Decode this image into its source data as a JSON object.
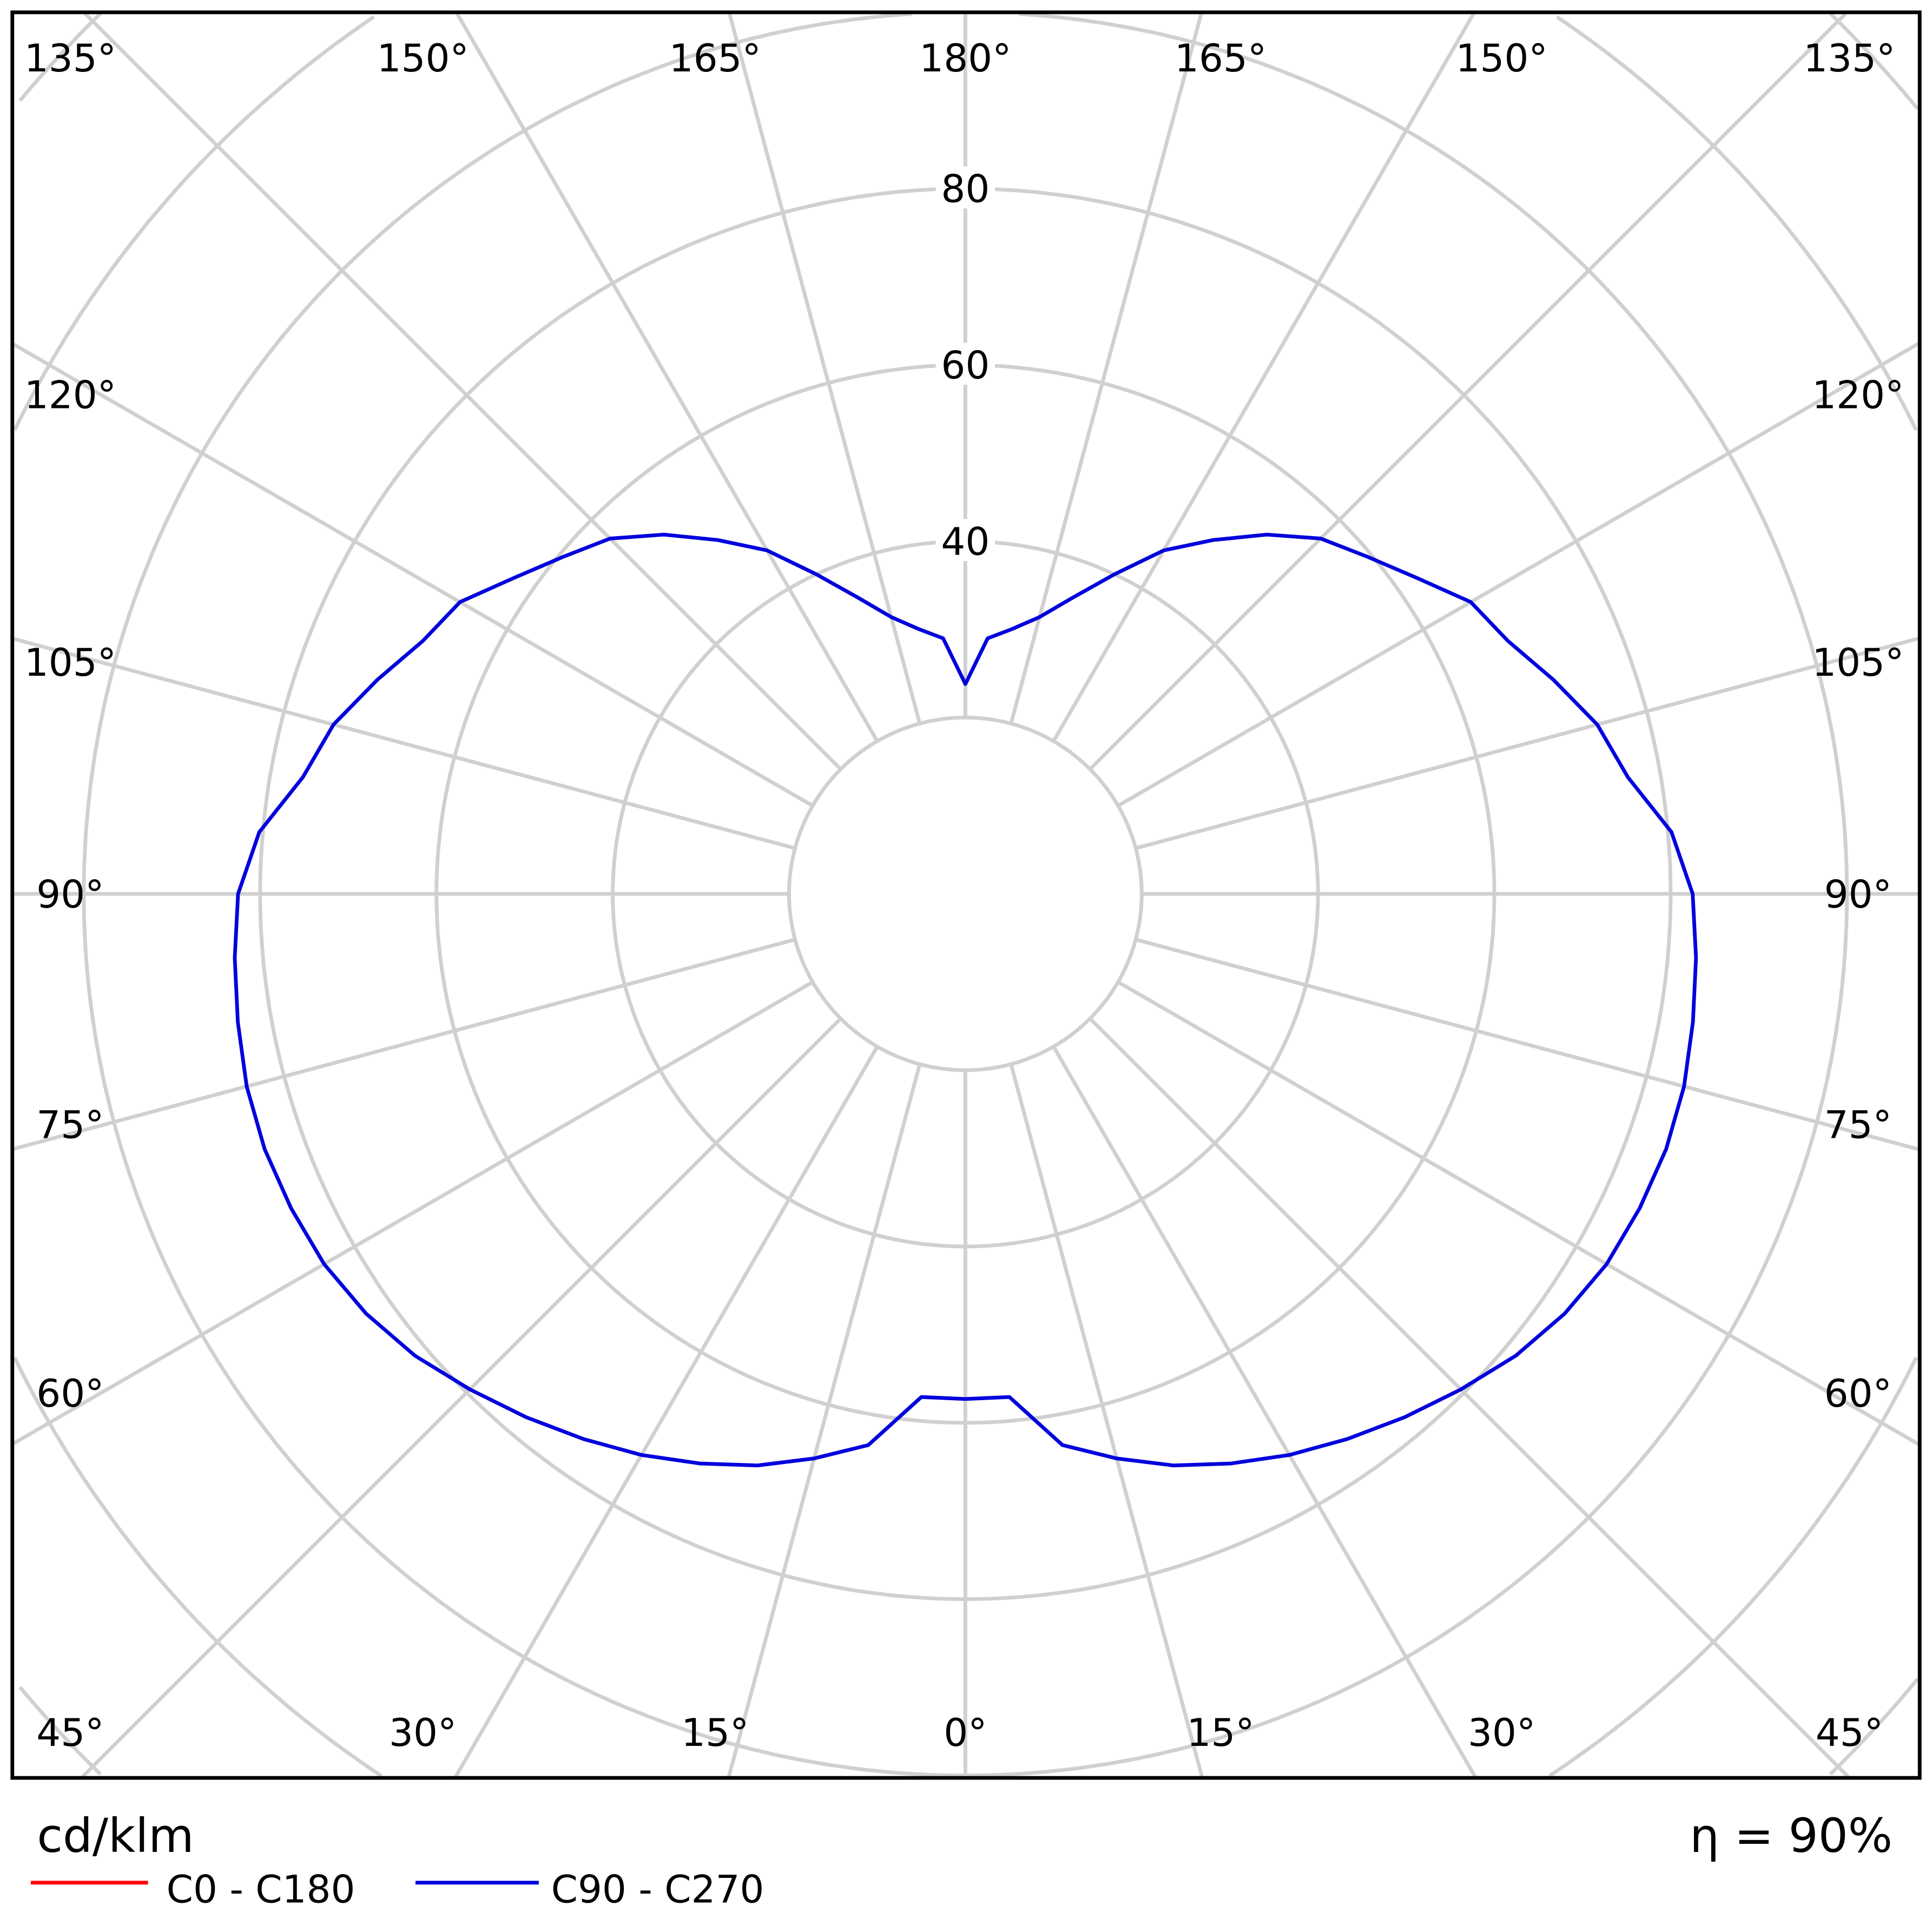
{
  "chart_data": {
    "type": "polar",
    "unit_label": "cd/klm",
    "efficiency_label": "η = 90%",
    "radial_ticks": [
      40,
      60,
      80
    ],
    "radial_tick_labels": [
      "40",
      "60",
      "80"
    ],
    "radial_step": 20,
    "angle_labels_top": [
      "135°",
      "150°",
      "165°",
      "180°",
      "165°",
      "150°",
      "135°"
    ],
    "angle_labels_left": [
      "120°",
      "105°",
      "90°",
      "75°",
      "60°"
    ],
    "angle_labels_right": [
      "120°",
      "105°",
      "90°",
      "75°",
      "60°"
    ],
    "angle_labels_bottom": [
      "45°",
      "30°",
      "15°",
      "0°",
      "15°",
      "30°",
      "45°"
    ],
    "angle_grid_step_deg": 15,
    "gamma_deg": [
      0,
      5,
      10,
      15,
      20,
      25,
      30,
      35,
      40,
      45,
      50,
      55,
      60,
      65,
      70,
      75,
      80,
      85,
      90,
      95,
      100,
      105,
      110,
      115,
      120,
      125,
      130,
      135,
      140,
      145,
      150,
      155,
      160,
      165,
      170,
      175,
      180
    ],
    "series": [
      {
        "name": "C0 - C180",
        "color": "#ff0000",
        "values": null
      },
      {
        "name": "C90 - C270",
        "color": "#0000dd",
        "values": [
          57.3,
          57.3,
          63.5,
          66.3,
          69,
          71.3,
          73.5,
          75.5,
          77.5,
          79.5,
          81.5,
          83,
          84,
          84.4,
          84.6,
          84.4,
          83.8,
          83.2,
          82.5,
          80.4,
          76.3,
          74.2,
          71,
          67.9,
          66.2,
          62.5,
          59.5,
          57,
          53.2,
          49,
          45,
          40,
          35.8,
          32.5,
          30.5,
          29.1,
          23.8
        ]
      }
    ],
    "symmetric": true,
    "grid": true,
    "legend_placement": "bottom-left"
  }
}
